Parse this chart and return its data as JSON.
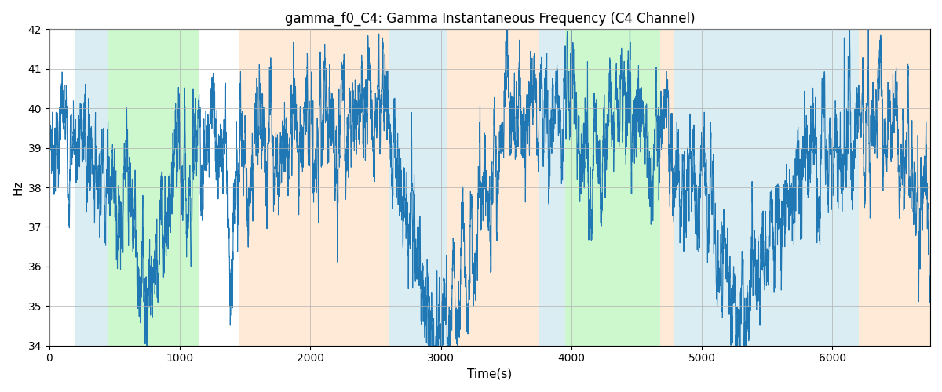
{
  "title": "gamma_f0_C4: Gamma Instantaneous Frequency (C4 Channel)",
  "xlabel": "Time(s)",
  "ylabel": "Hz",
  "ylim": [
    34,
    42
  ],
  "xlim": [
    0,
    6750
  ],
  "line_color": "#1f77b4",
  "line_width": 0.8,
  "background_color": "#ffffff",
  "grid_color": "#b0b0b0",
  "bg_regions": [
    {
      "start": 200,
      "end": 450,
      "color": "#add8e6",
      "alpha": 0.45
    },
    {
      "start": 450,
      "end": 1150,
      "color": "#90ee90",
      "alpha": 0.45
    },
    {
      "start": 1450,
      "end": 2600,
      "color": "#ffdab9",
      "alpha": 0.55
    },
    {
      "start": 2600,
      "end": 3050,
      "color": "#add8e6",
      "alpha": 0.45
    },
    {
      "start": 3050,
      "end": 3750,
      "color": "#ffdab9",
      "alpha": 0.55
    },
    {
      "start": 3750,
      "end": 3950,
      "color": "#add8e6",
      "alpha": 0.45
    },
    {
      "start": 3950,
      "end": 4680,
      "color": "#90ee90",
      "alpha": 0.45
    },
    {
      "start": 4680,
      "end": 4780,
      "color": "#ffdab9",
      "alpha": 0.55
    },
    {
      "start": 4780,
      "end": 6100,
      "color": "#add8e6",
      "alpha": 0.45
    },
    {
      "start": 6100,
      "end": 6200,
      "color": "#add8e6",
      "alpha": 0.45
    },
    {
      "start": 6200,
      "end": 6750,
      "color": "#ffdab9",
      "alpha": 0.55
    }
  ],
  "title_fontsize": 12
}
